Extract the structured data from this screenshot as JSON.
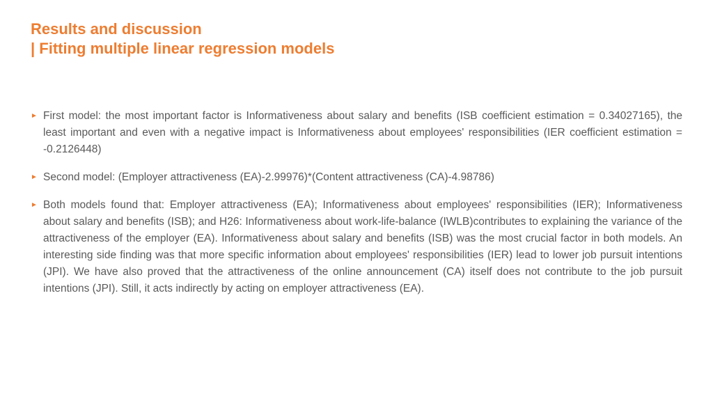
{
  "colors": {
    "accent": "#ed7d31",
    "body_text": "#595959",
    "background": "#ffffff"
  },
  "typography": {
    "title_weight": "bold",
    "title_fontsize": 22,
    "body_fontsize": 15.5,
    "body_lineheight": 1.55,
    "body_align": "justify"
  },
  "title": {
    "line1": "Results and discussion",
    "line2": "| Fitting multiple linear regression models"
  },
  "bullets": [
    "First model: the most important factor is Informativeness about salary and benefits (ISB coefficient estimation = 0.34027165), the least important and even with a negative impact is Informativeness about employees' responsibilities (IER coefficient estimation = -0.2126448)",
    "Second model: (Employer attractiveness (EA)-2.99976)*(Content attractiveness (CA)-4.98786)",
    "Both models found that: Employer attractiveness (EA); Informativeness about employees' responsibilities (IER); Informativeness about salary and benefits (ISB); and H26: Informativeness about work-life-balance (IWLB)contributes to explaining the variance of the attractiveness of the employer (EA). Informativeness about salary and benefits (ISB) was the most crucial factor in both models. An interesting side finding was that more specific information about employees' responsibilities (IER) lead to lower job pursuit intentions (JPI). We have also proved that the attractiveness of the online announcement (CA) itself does not contribute to the job pursuit intentions (JPI). Still, it acts indirectly by acting on employer attractiveness (EA)."
  ]
}
